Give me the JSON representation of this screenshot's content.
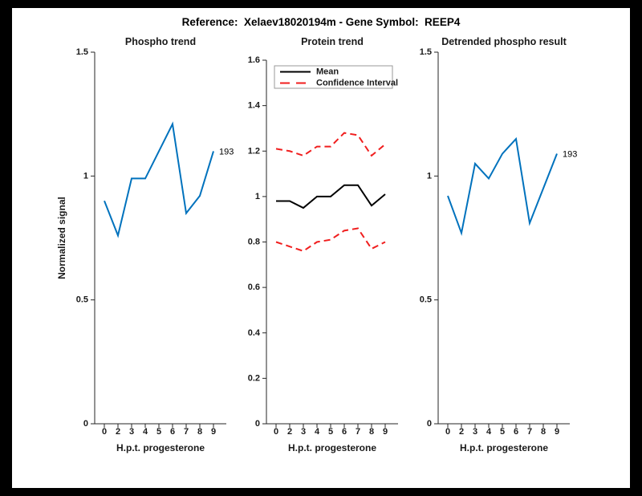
{
  "figure": {
    "title": "Reference:  Xelaev18020194m - Gene Symbol:  REEP4",
    "background": "#000000",
    "page_background": "#ffffff"
  },
  "colors": {
    "matlab_blue": "#0072bd",
    "ci_red": "#f01e1e",
    "mean_black": "#000000",
    "axis_gray": "#262626",
    "text_black": "#1a1a1a",
    "legend_border": "#999999"
  },
  "chart_data": [
    {
      "type": "line",
      "title": "Phospho trend",
      "xlabel": "H.p.t. progesterone",
      "ylabel": "Normalized signal",
      "x": [
        0,
        2,
        3,
        4,
        5,
        6,
        7,
        8,
        9
      ],
      "x_ticklabels": [
        "0",
        "2",
        "3",
        "4",
        "5",
        "6",
        "7",
        "8",
        "9"
      ],
      "x_spacing": "equal",
      "ylim": [
        0,
        1.5
      ],
      "ytick_values": [
        0,
        0.5,
        1,
        1.5
      ],
      "ytick_labels": [
        "0",
        "0.5",
        "1",
        "1.5"
      ],
      "grid": "off",
      "series": [
        {
          "name": "phospho",
          "color": "#0072bd",
          "style": "solid",
          "values": [
            0.9,
            0.76,
            0.99,
            0.99,
            1.1,
            1.21,
            0.85,
            0.92,
            1.1
          ]
        }
      ],
      "end_label": "193",
      "legend": null
    },
    {
      "type": "line",
      "title": "Protein trend",
      "xlabel": "H.p.t. progesterone",
      "ylabel": "",
      "x": [
        0,
        2,
        3,
        4,
        5,
        6,
        7,
        8,
        9
      ],
      "x_ticklabels": [
        "0",
        "2",
        "3",
        "4",
        "5",
        "6",
        "7",
        "8",
        "9"
      ],
      "x_spacing": "equal",
      "ylim": [
        0,
        1.6
      ],
      "ytick_values": [
        0,
        0.2,
        0.4,
        0.6,
        0.8,
        1,
        1.2,
        1.4,
        1.6
      ],
      "ytick_labels": [
        "0",
        "0.2",
        "0.4",
        "0.6",
        "0.8",
        "1",
        "1.2",
        "1.4",
        "1.6"
      ],
      "grid": "off",
      "series": [
        {
          "name": "Mean",
          "color": "#000000",
          "style": "solid",
          "values": [
            0.98,
            0.98,
            0.95,
            1.0,
            1.0,
            1.05,
            1.05,
            0.96,
            1.01
          ]
        },
        {
          "name": "Confidence Interval upper",
          "color": "#f01e1e",
          "style": "dashed",
          "values": [
            1.21,
            1.2,
            1.18,
            1.22,
            1.22,
            1.28,
            1.27,
            1.18,
            1.23
          ]
        },
        {
          "name": "Confidence Interval lower",
          "color": "#f01e1e",
          "style": "dashed",
          "values": [
            0.8,
            0.78,
            0.76,
            0.8,
            0.81,
            0.85,
            0.86,
            0.77,
            0.8
          ]
        }
      ],
      "end_label": null,
      "legend": {
        "position": "northwest",
        "entries": [
          {
            "label": "Mean",
            "color": "#000000",
            "style": "solid"
          },
          {
            "label": "Confidence Interval",
            "color": "#f01e1e",
            "style": "dashed"
          }
        ]
      }
    },
    {
      "type": "line",
      "title": "Detrended phospho result",
      "xlabel": "H.p.t. progesterone",
      "ylabel": "",
      "x": [
        0,
        2,
        3,
        4,
        5,
        6,
        7,
        8,
        9
      ],
      "x_ticklabels": [
        "0",
        "2",
        "3",
        "4",
        "5",
        "6",
        "7",
        "8",
        "9"
      ],
      "x_spacing": "equal",
      "ylim": [
        0,
        1.5
      ],
      "ytick_values": [
        0,
        0.5,
        1,
        1.5
      ],
      "ytick_labels": [
        "0",
        "0.5",
        "1",
        "1.5"
      ],
      "grid": "off",
      "series": [
        {
          "name": "detrended phospho",
          "color": "#0072bd",
          "style": "solid",
          "values": [
            0.92,
            0.77,
            1.05,
            0.99,
            1.09,
            1.15,
            0.81,
            0.95,
            1.09
          ]
        }
      ],
      "end_label": "193",
      "legend": null
    }
  ]
}
